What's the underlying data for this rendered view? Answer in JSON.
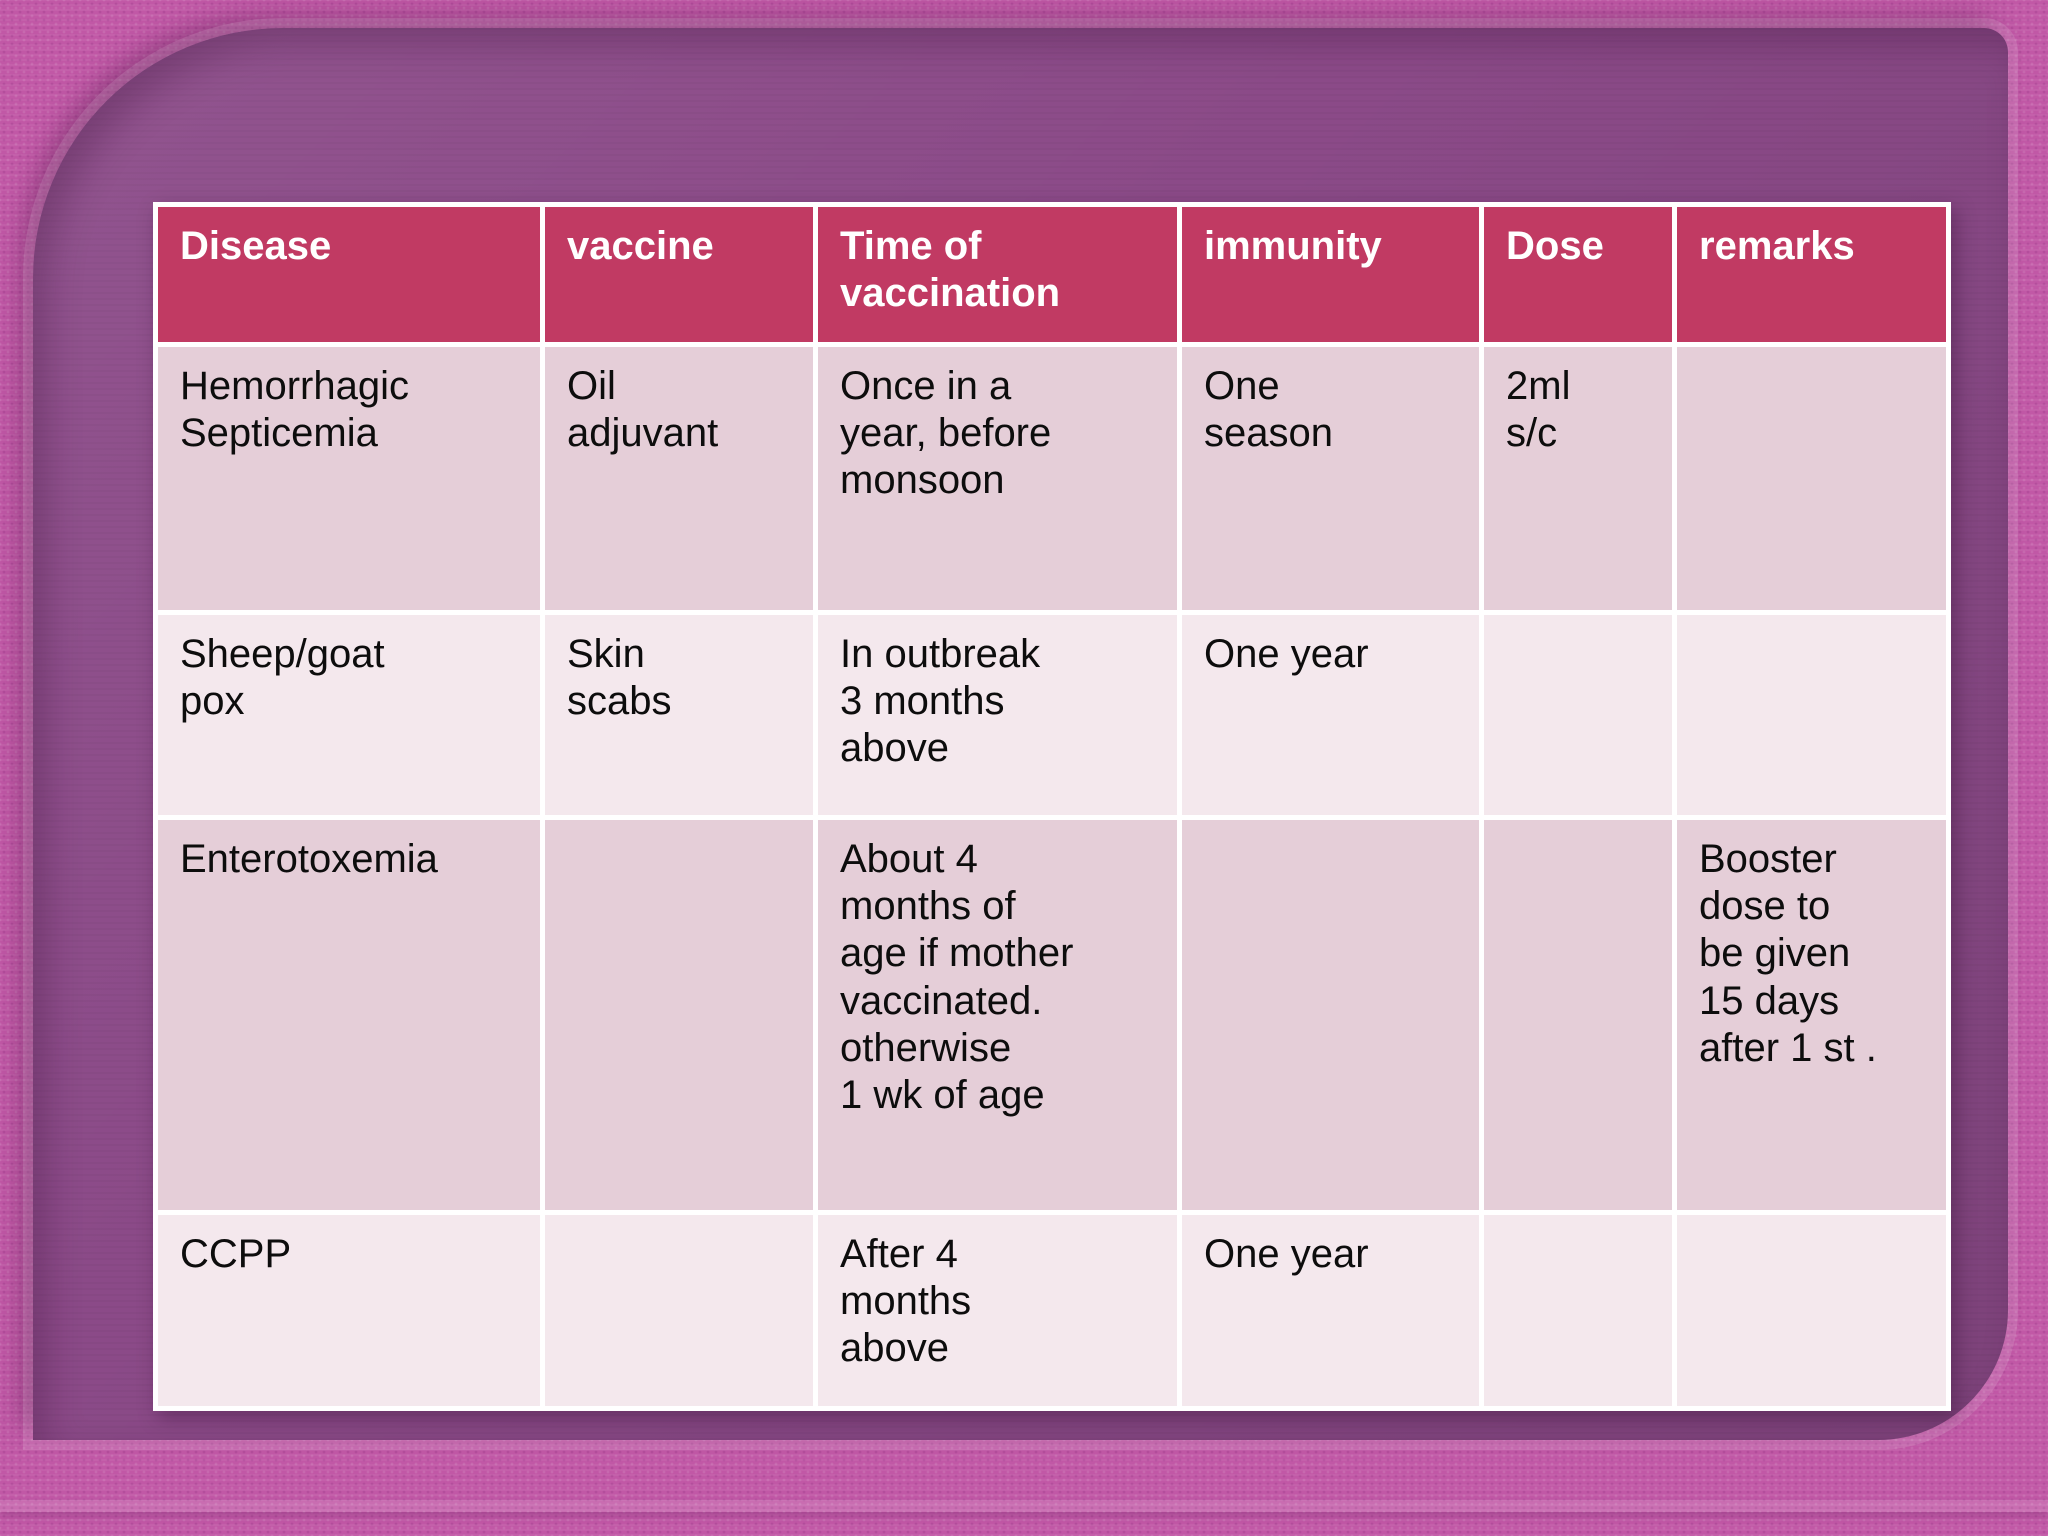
{
  "slide": {
    "colors": {
      "frame_pink": "#c158a6",
      "panel_purple": "#8b4a88",
      "header_bg": "#c13a63",
      "header_text": "#ffffff",
      "row_dark": "#e5ced8",
      "row_light": "#f4e8ed",
      "gridline": "#ffffff",
      "body_text": "#0d0d0d"
    },
    "table": {
      "headers": [
        "Disease",
        "vaccine",
        "Time of\nvaccination",
        "immunity",
        "Dose",
        "remarks"
      ],
      "rows": [
        {
          "cells": [
            "Hemorrhagic\nSepticemia",
            "Oil\nadjuvant",
            "Once in a\nyear, before\nmonsoon",
            "One\nseason",
            "2ml\ns/c",
            ""
          ]
        },
        {
          "cells": [
            "Sheep/goat\npox",
            "Skin\nscabs",
            "In outbreak\n3 months\nabove",
            "One year",
            "",
            ""
          ]
        },
        {
          "cells": [
            "Enterotoxemia",
            "",
            "About 4\nmonths of\nage if mother\nvaccinated.\notherwise\n1 wk of age",
            "",
            "",
            "Booster\ndose to\nbe given\n15 days\nafter 1 st ."
          ]
        },
        {
          "cells": [
            "CCPP",
            "",
            "After 4\nmonths\nabove",
            "One year",
            "",
            ""
          ]
        }
      ]
    }
  }
}
